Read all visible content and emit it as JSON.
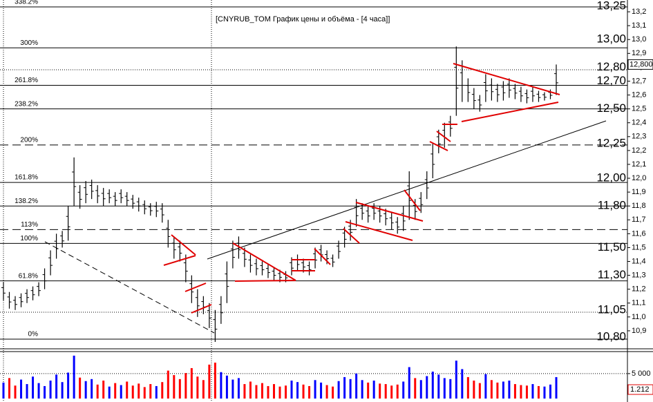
{
  "chart_data": {
    "type": "price-bars",
    "title": "[CNYRUB_TOM График цены и объёма - [4 часа]]",
    "ylim": [
      10.81,
      13.285
    ],
    "yticks": [
      {
        "value": 10.9,
        "label": "10,9"
      },
      {
        "value": 11.0,
        "label": "11,0"
      },
      {
        "value": 11.1,
        "label": "11,1"
      },
      {
        "value": 11.2,
        "label": "11,2"
      },
      {
        "value": 11.3,
        "label": "11,3"
      },
      {
        "value": 11.4,
        "label": "11,4"
      },
      {
        "value": 11.5,
        "label": "11,5"
      },
      {
        "value": 11.6,
        "label": "11,6"
      },
      {
        "value": 11.7,
        "label": "11,7"
      },
      {
        "value": 11.8,
        "label": "11,8"
      },
      {
        "value": 11.9,
        "label": "11,9"
      },
      {
        "value": 12.0,
        "label": "12,0"
      },
      {
        "value": 12.1,
        "label": "12,1"
      },
      {
        "value": 12.2,
        "label": "12,2"
      },
      {
        "value": 12.3,
        "label": "12,3"
      },
      {
        "value": 12.4,
        "label": "12,4"
      },
      {
        "value": 12.5,
        "label": "12,5"
      },
      {
        "value": 12.6,
        "label": "12,6"
      },
      {
        "value": 12.7,
        "label": "12,7"
      },
      {
        "value": 12.8,
        "label": "12,8"
      },
      {
        "value": 12.9,
        "label": "12,9"
      },
      {
        "value": 13.0,
        "label": "13,0"
      },
      {
        "value": 13.1,
        "label": "13,1"
      },
      {
        "value": 13.2,
        "label": "13,2"
      }
    ],
    "last_price_label": "12,800",
    "levels": [
      {
        "value": 13.235,
        "label": "338.2%",
        "dashed": false
      },
      {
        "value": 12.94,
        "label": "300%",
        "dashed": false
      },
      {
        "value": 12.67,
        "label": "261.8%",
        "dashed": false
      },
      {
        "value": 12.5,
        "label": "238.2%",
        "dashed": false
      },
      {
        "value": 12.24,
        "label": "200%",
        "dashed": true
      },
      {
        "value": 11.97,
        "label": "161.8%",
        "dashed": false
      },
      {
        "value": 11.8,
        "label": "138.2%",
        "dashed": false
      },
      {
        "value": 11.63,
        "label": "113%",
        "dashed": true
      },
      {
        "value": 11.53,
        "label": "100%",
        "dashed": false
      },
      {
        "value": 11.26,
        "label": "61.8%",
        "dashed": false
      },
      {
        "value": 10.84,
        "label": "0%",
        "dashed": false
      }
    ],
    "price_labels": [
      {
        "value": 13.25,
        "label": "13,25"
      },
      {
        "value": 13.0,
        "label": "13,00"
      },
      {
        "value": 12.8,
        "label": "12,80"
      },
      {
        "value": 12.7,
        "label": "12,70"
      },
      {
        "value": 12.5,
        "label": "12,50"
      },
      {
        "value": 12.25,
        "label": "12,25"
      },
      {
        "value": 12.0,
        "label": "12,00"
      },
      {
        "value": 11.8,
        "label": "11,80"
      },
      {
        "value": 11.5,
        "label": "11,50"
      },
      {
        "value": 11.3,
        "label": "11,30"
      },
      {
        "value": 11.05,
        "label": "11,05"
      },
      {
        "value": 10.8,
        "label": "10,80"
      }
    ],
    "high": [
      11.25,
      11.18,
      11.15,
      11.17,
      11.2,
      11.22,
      11.25,
      11.35,
      11.48,
      11.6,
      11.62,
      11.8,
      12.15,
      11.95,
      11.98,
      11.99,
      11.95,
      11.93,
      11.92,
      11.9,
      11.92,
      11.9,
      11.88,
      11.86,
      11.84,
      11.82,
      11.83,
      11.82,
      11.7,
      11.58,
      11.55,
      11.45,
      11.3,
      11.2,
      11.15,
      11.1,
      11.05,
      11.15,
      11.4,
      11.55,
      11.58,
      11.5,
      11.45,
      11.42,
      11.4,
      11.38,
      11.36,
      11.34,
      11.33,
      11.43,
      11.45,
      11.42,
      11.4,
      11.5,
      11.52,
      11.48,
      11.45,
      11.55,
      11.65,
      11.7,
      11.85,
      11.82,
      11.8,
      11.82,
      11.8,
      11.78,
      11.75,
      11.72,
      11.8,
      12.05,
      11.85,
      11.9,
      12.05,
      12.25,
      12.35,
      12.4,
      12.45,
      12.95,
      12.85,
      12.72,
      12.65,
      12.6,
      12.75,
      12.72,
      12.68,
      12.7,
      12.72,
      12.68,
      12.66,
      12.64,
      12.66,
      12.63,
      12.62,
      12.64,
      12.82
    ],
    "low": [
      11.12,
      11.06,
      11.05,
      11.07,
      11.1,
      11.12,
      11.15,
      11.2,
      11.3,
      11.42,
      11.5,
      11.55,
      11.8,
      11.78,
      11.82,
      11.85,
      11.82,
      11.8,
      11.82,
      11.8,
      11.82,
      11.8,
      11.78,
      11.76,
      11.74,
      11.73,
      11.72,
      11.68,
      11.5,
      11.42,
      11.4,
      11.25,
      11.1,
      11.0,
      11.02,
      10.92,
      10.82,
      10.95,
      11.1,
      11.35,
      11.42,
      11.36,
      11.32,
      11.3,
      11.3,
      11.28,
      11.26,
      11.25,
      11.25,
      11.3,
      11.33,
      11.32,
      11.3,
      11.35,
      11.4,
      11.38,
      11.36,
      11.42,
      11.5,
      11.55,
      11.65,
      11.7,
      11.68,
      11.7,
      11.68,
      11.66,
      11.63,
      11.6,
      11.62,
      11.7,
      11.7,
      11.75,
      11.85,
      12.0,
      12.18,
      12.22,
      12.3,
      12.45,
      12.55,
      12.55,
      12.5,
      12.48,
      12.55,
      12.56,
      12.55,
      12.56,
      12.58,
      12.57,
      12.55,
      12.54,
      12.55,
      12.55,
      12.56,
      12.57,
      12.6
    ],
    "volume": {
      "ylim": [
        0,
        9000
      ],
      "yticks": [
        {
          "value": 5000,
          "label": "5 000"
        }
      ],
      "last_label": "1.212",
      "values": [
        3200,
        4100,
        2600,
        3800,
        2900,
        4400,
        3100,
        2500,
        3600,
        4800,
        3300,
        5200,
        8600,
        4200,
        3500,
        3900,
        2800,
        3600,
        2400,
        3100,
        2700,
        3400,
        2600,
        3000,
        2300,
        2900,
        2500,
        3300,
        5600,
        4700,
        3900,
        5100,
        6100,
        4400,
        3700,
        6800,
        7200,
        5300,
        4600,
        3800,
        4100,
        2900,
        3400,
        2700,
        3100,
        2500,
        2900,
        2400,
        2600,
        3600,
        3300,
        2800,
        2500,
        3700,
        3200,
        2700,
        2400,
        3500,
        4300,
        3900,
        5000,
        3700,
        3200,
        3600,
        3000,
        2900,
        2600,
        2800,
        3400,
        6300,
        4100,
        3700,
        4500,
        5400,
        4800,
        4100,
        3900,
        7600,
        5900,
        4300,
        3600,
        3100,
        4900,
        3700,
        3200,
        3400,
        3600,
        2900,
        2700,
        2600,
        2900,
        2500,
        2400,
        2800,
        4300
      ]
    }
  }
}
